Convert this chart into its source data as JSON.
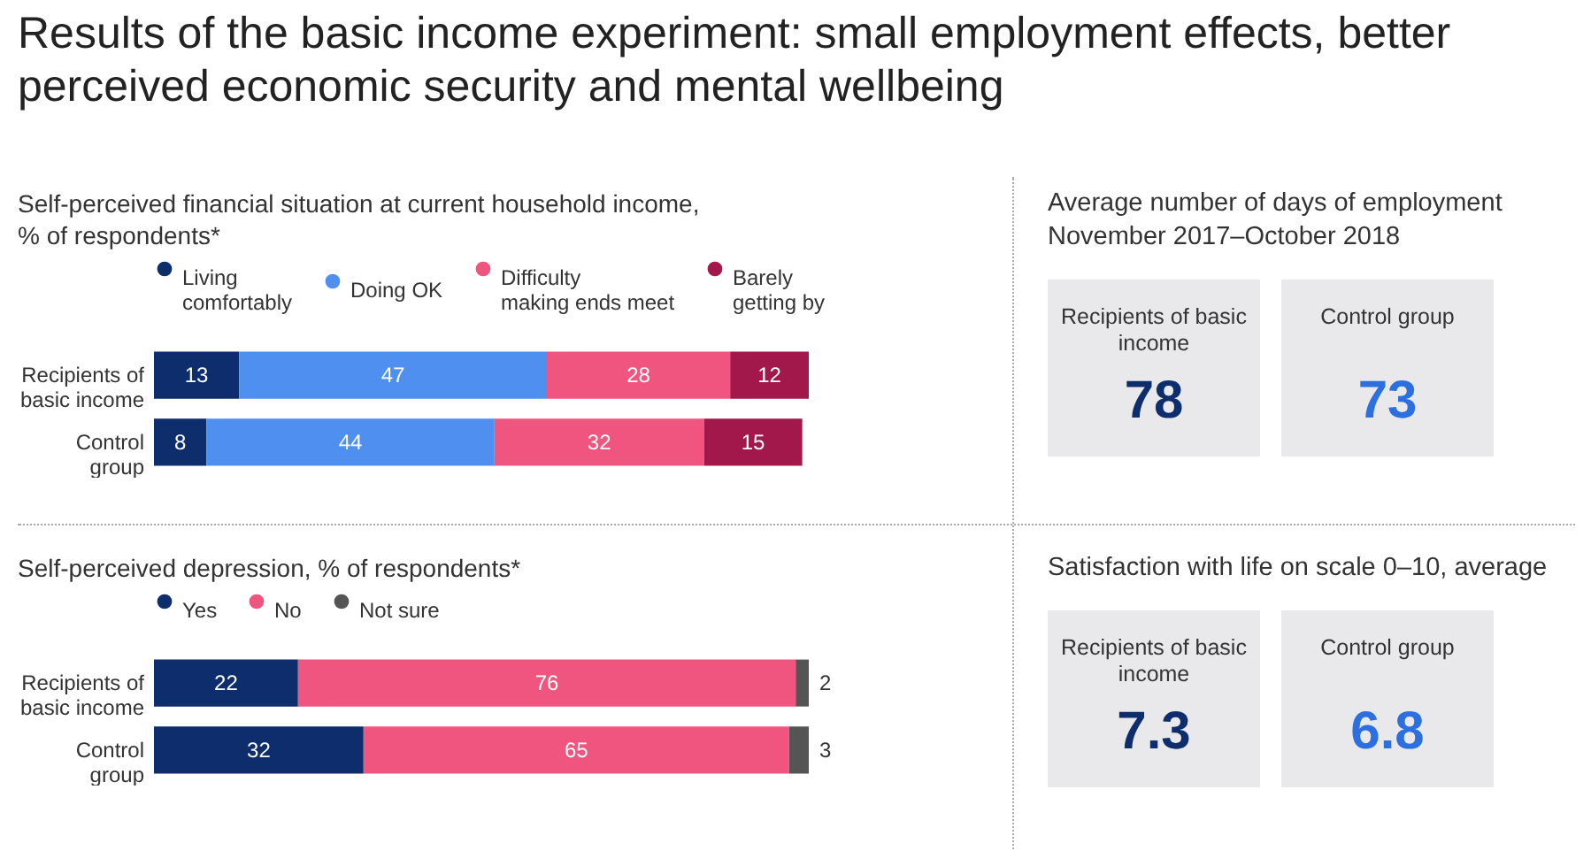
{
  "chart_data": [
    {
      "type": "other",
      "title": "Results of the basic income experiment: small employment effects, better perceived economic security and mental wellbeing"
    },
    {
      "type": "bar",
      "title": "Self-perceived financial situation at current household income, % of respondents*",
      "orientation": "horizontal",
      "stacked": true,
      "legend": "top",
      "data_labels": true,
      "tick_labels": "y",
      "categories": [
        "Recipients of basic income",
        "Control group"
      ],
      "series": [
        {
          "name": "Living comfortably",
          "color": "#0d2d6c",
          "values": [
            13,
            8
          ]
        },
        {
          "name": "Doing OK",
          "color": "#4f8ff0",
          "values": [
            47,
            44
          ]
        },
        {
          "name": "Difficulty making ends meet",
          "color": "#f0557f",
          "values": [
            28,
            32
          ]
        },
        {
          "name": "Barely getting by",
          "color": "#a3184a",
          "values": [
            12,
            15
          ]
        }
      ]
    },
    {
      "type": "other",
      "title": "Average number of days of employment November 2017–October 2018",
      "annotations": [
        "Recipients of basic income",
        "78",
        "Control group",
        "73"
      ]
    },
    {
      "type": "bar",
      "title": "Self-perceived depression, % of respondents*",
      "orientation": "horizontal",
      "stacked": true,
      "legend": "top",
      "data_labels": true,
      "tick_labels": "y",
      "categories": [
        "Recipients of basic income",
        "Control group"
      ],
      "series": [
        {
          "name": "Yes",
          "color": "#0d2d6c",
          "values": [
            22,
            32
          ]
        },
        {
          "name": "No",
          "color": "#f0557f",
          "values": [
            76,
            65
          ]
        },
        {
          "name": "Not sure",
          "color": "#555555",
          "values": [
            2,
            3
          ]
        }
      ]
    },
    {
      "type": "other",
      "title": "Satisfaction with life on scale 0–10, average",
      "annotations": [
        "Recipients of basic income",
        "7.3",
        "Control group",
        "6.8"
      ]
    }
  ]
}
